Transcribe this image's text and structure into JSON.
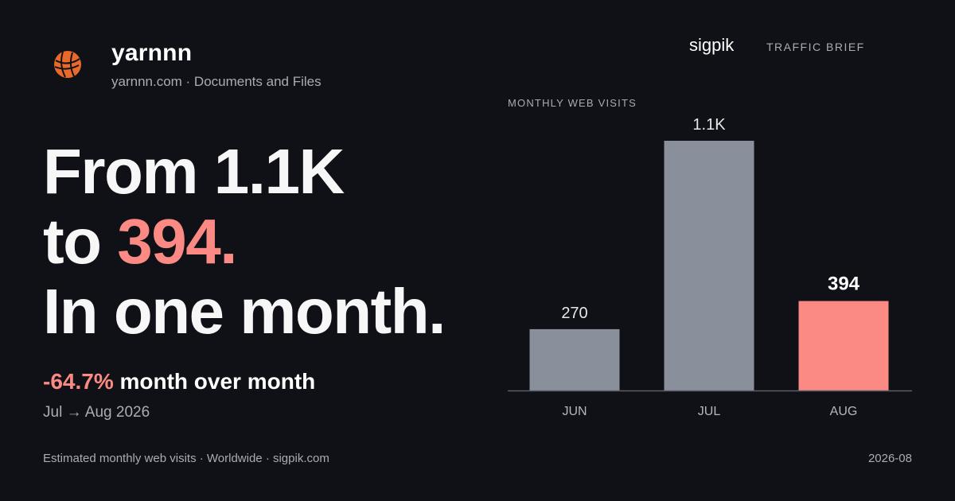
{
  "brand": {
    "name": "yarnnn",
    "subtitle": "yarnnn.com · Documents and Files",
    "logo_icon": "yarn-ball-icon",
    "logo_color": "#e8692a"
  },
  "headline": {
    "line1": "From 1.1K",
    "line2_prefix": "to ",
    "line2_accent": "394.",
    "line3": "In one month."
  },
  "change": {
    "percent": "-64.7%",
    "label": " month over month",
    "period": "Jul → Aug 2026"
  },
  "source": {
    "brand": "sigpik",
    "tag": "TRAFFIC BRIEF"
  },
  "footer": {
    "left": "Estimated monthly web visits · Worldwide · sigpik.com",
    "right": "2026-08"
  },
  "colors": {
    "background": "#0f1116",
    "accent": "#fb8a84",
    "neutral_bar": "#8a8f9c"
  },
  "chart_data": {
    "type": "bar",
    "title": "MONTHLY WEB VISITS",
    "categories": [
      "JUN",
      "JUL",
      "AUG"
    ],
    "values": [
      270,
      1100,
      394
    ],
    "value_labels": [
      "270",
      "1.1K",
      "394"
    ],
    "highlight_index": 2,
    "ylim": [
      0,
      1100
    ],
    "grid": false
  }
}
